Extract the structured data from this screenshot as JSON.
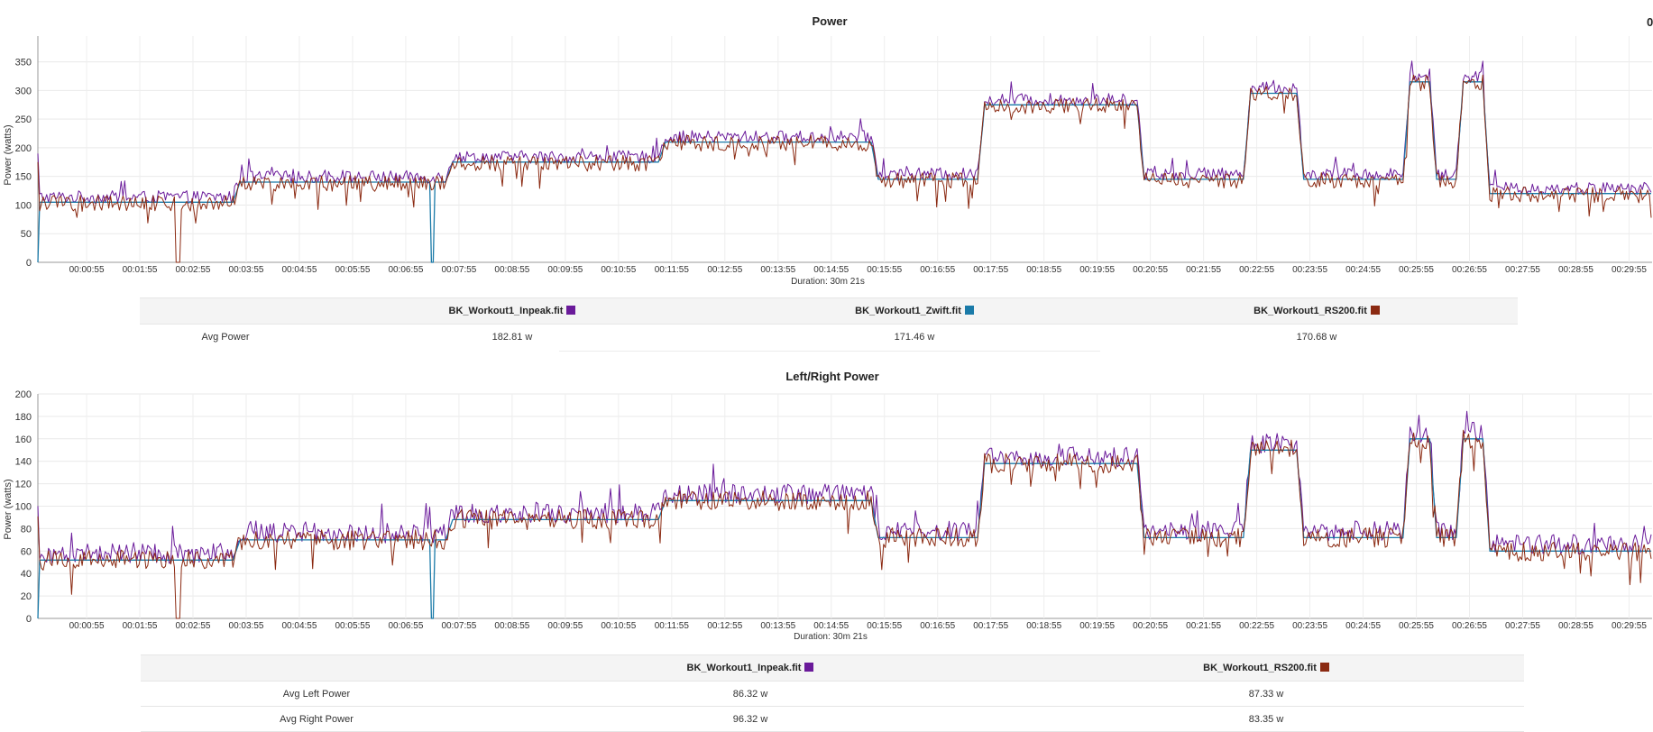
{
  "colors": {
    "inpeak": "#6a1a9a",
    "zwift": "#1a7aa8",
    "rs200": "#8b2a12"
  },
  "x_tick_labels": [
    "00:00:55",
    "00:01:55",
    "00:02:55",
    "00:03:55",
    "00:04:55",
    "00:05:55",
    "00:06:55",
    "00:07:55",
    "00:08:55",
    "00:09:55",
    "00:10:55",
    "00:11:55",
    "00:12:55",
    "00:13:55",
    "00:14:55",
    "00:15:55",
    "00:16:55",
    "00:17:55",
    "00:18:55",
    "00:19:55",
    "00:20:55",
    "00:21:55",
    "00:22:55",
    "00:23:55",
    "00:24:55",
    "00:25:55",
    "00:26:55",
    "00:27:55",
    "00:28:55",
    "00:29:55"
  ],
  "page_corner_text": "0",
  "chart_data": [
    {
      "type": "line",
      "title": "Power",
      "xlabel": "Duration: 30m 21s",
      "ylabel": "Power (watts)",
      "xlim_seconds": [
        0,
        1821
      ],
      "ylim": [
        0,
        395
      ],
      "yticks": [
        0,
        50,
        100,
        150,
        200,
        250,
        300,
        350
      ],
      "grid": true,
      "legend_position": "bottom",
      "segments": [
        {
          "start": "00:00:00",
          "end": "00:03:40",
          "target": 105
        },
        {
          "start": "00:03:40",
          "end": "00:07:40",
          "target": 140
        },
        {
          "start": "00:07:40",
          "end": "00:11:40",
          "target": 175
        },
        {
          "start": "00:11:40",
          "end": "00:15:40",
          "target": 210
        },
        {
          "start": "00:15:40",
          "end": "00:17:40",
          "target": 145
        },
        {
          "start": "00:17:40",
          "end": "00:20:40",
          "target": 275
        },
        {
          "start": "00:20:40",
          "end": "00:22:40",
          "target": 145
        },
        {
          "start": "00:22:40",
          "end": "00:23:40",
          "target": 295
        },
        {
          "start": "00:23:40",
          "end": "00:25:40",
          "target": 145
        },
        {
          "start": "00:25:40",
          "end": "00:26:10",
          "target": 315
        },
        {
          "start": "00:26:10",
          "end": "00:26:40",
          "target": 145
        },
        {
          "start": "00:26:40",
          "end": "00:27:10",
          "target": 315
        },
        {
          "start": "00:27:10",
          "end": "00:30:21",
          "target": 120
        }
      ],
      "series": [
        {
          "name": "BK_Workout1_Inpeak.fit",
          "color": "#6a1a9a",
          "offset": 9,
          "noise": 11
        },
        {
          "name": "BK_Workout1_Zwift.fit",
          "color": "#1a7aa8",
          "offset": 0,
          "noise": 0
        },
        {
          "name": "BK_Workout1_RS200.fit",
          "color": "#8b2a12",
          "offset": -2,
          "noise": 14
        }
      ]
    },
    {
      "type": "line",
      "title": "Left/Right Power",
      "xlabel": "Duration: 30m 21s",
      "ylabel": "Power (watts)",
      "xlim_seconds": [
        0,
        1821
      ],
      "ylim": [
        0,
        200
      ],
      "yticks": [
        0,
        20,
        40,
        60,
        80,
        100,
        120,
        140,
        160,
        180,
        200
      ],
      "grid": true,
      "legend_position": "bottom",
      "segments": [
        {
          "start": "00:00:00",
          "end": "00:03:40",
          "target": 52
        },
        {
          "start": "00:03:40",
          "end": "00:07:40",
          "target": 70
        },
        {
          "start": "00:07:40",
          "end": "00:11:40",
          "target": 88
        },
        {
          "start": "00:11:40",
          "end": "00:15:40",
          "target": 105
        },
        {
          "start": "00:15:40",
          "end": "00:17:40",
          "target": 72
        },
        {
          "start": "00:17:40",
          "end": "00:20:40",
          "target": 138
        },
        {
          "start": "00:20:40",
          "end": "00:22:40",
          "target": 72
        },
        {
          "start": "00:22:40",
          "end": "00:23:40",
          "target": 150
        },
        {
          "start": "00:23:40",
          "end": "00:25:40",
          "target": 72
        },
        {
          "start": "00:25:40",
          "end": "00:26:10",
          "target": 160
        },
        {
          "start": "00:26:10",
          "end": "00:26:40",
          "target": 72
        },
        {
          "start": "00:26:40",
          "end": "00:27:10",
          "target": 160
        },
        {
          "start": "00:27:10",
          "end": "00:30:21",
          "target": 60
        }
      ],
      "series": [
        {
          "name": "BK_Workout1_Inpeak.fit",
          "color": "#6a1a9a",
          "offset": 6,
          "noise": 9
        },
        {
          "name": "BK_Workout1_Zwift.fit",
          "color": "#1a7aa8",
          "offset": 0,
          "noise": 0
        },
        {
          "name": "BK_Workout1_RS200.fit",
          "color": "#8b2a12",
          "offset": 0,
          "noise": 9
        }
      ]
    }
  ],
  "table1": {
    "headers": [
      "BK_Workout1_Inpeak.fit",
      "BK_Workout1_Zwift.fit",
      "BK_Workout1_RS200.fit"
    ],
    "row_label": "Avg Power",
    "values": [
      "182.81 w",
      "171.46 w",
      "170.68 w"
    ]
  },
  "table2": {
    "headers": [
      "BK_Workout1_Inpeak.fit",
      "BK_Workout1_RS200.fit"
    ],
    "rows": [
      {
        "label": "Avg Left Power",
        "values": [
          "86.32 w",
          "87.33 w"
        ]
      },
      {
        "label": "Avg Right Power",
        "values": [
          "96.32 w",
          "83.35 w"
        ]
      }
    ]
  }
}
